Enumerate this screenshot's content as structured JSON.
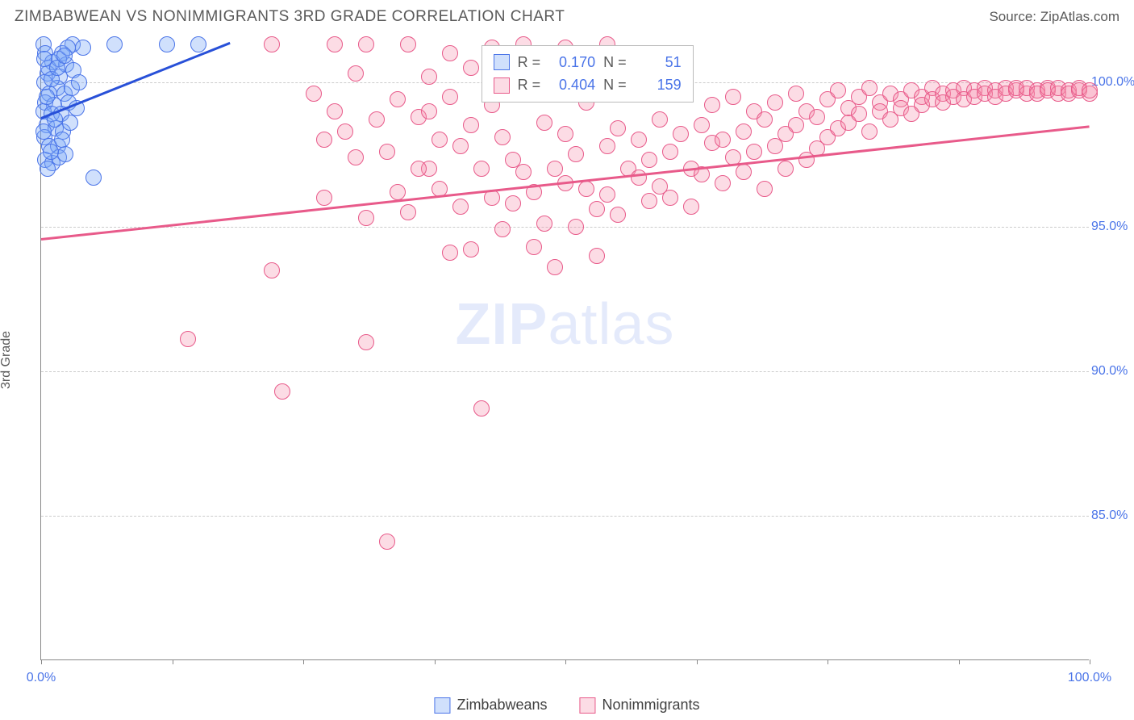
{
  "header": {
    "title": "ZIMBABWEAN VS NONIMMIGRANTS 3RD GRADE CORRELATION CHART",
    "source": "Source: ZipAtlas.com"
  },
  "watermark": {
    "bold": "ZIP",
    "rest": "atlas"
  },
  "chart": {
    "type": "scatter",
    "ylabel": "3rd Grade",
    "xlim": [
      0,
      100
    ],
    "ylim": [
      80,
      101.5
    ],
    "yticks": [
      85.0,
      90.0,
      95.0,
      100.0
    ],
    "ytick_labels": [
      "85.0%",
      "90.0%",
      "95.0%",
      "100.0%"
    ],
    "xtick_marks": [
      0,
      12.5,
      25,
      37.5,
      50,
      62.5,
      75,
      87.5,
      100
    ],
    "xtick_labels": [
      {
        "x": 0,
        "text": "0.0%"
      },
      {
        "x": 100,
        "text": "100.0%"
      }
    ],
    "grid_color": "#cccccc",
    "background_color": "#ffffff",
    "axis_color": "#888888",
    "tick_font_color": "#4a74e8",
    "label_font_color": "#5a5a5a",
    "marker_radius": 10,
    "marker_stroke_width": 1.5,
    "series": [
      {
        "name": "Zimbabweans",
        "color_fill": "rgba(120,165,245,0.35)",
        "color_stroke": "#4a74e8",
        "R": "0.170",
        "N": "51",
        "trend": {
          "x1": 0,
          "y1": 98.8,
          "x2": 18,
          "y2": 101.4,
          "color": "#2850d8",
          "width": 3
        },
        "points": [
          [
            0.2,
            101.3
          ],
          [
            3,
            101.3
          ],
          [
            7,
            101.3
          ],
          [
            12,
            101.3
          ],
          [
            15,
            101.3
          ],
          [
            0.4,
            101.0
          ],
          [
            2.0,
            101.0
          ],
          [
            1.1,
            100.7
          ],
          [
            2.4,
            100.6
          ],
          [
            0.6,
            100.3
          ],
          [
            1.8,
            100.2
          ],
          [
            3.1,
            100.4
          ],
          [
            0.3,
            100.0
          ],
          [
            1.5,
            99.8
          ],
          [
            0.8,
            99.6
          ],
          [
            2.2,
            99.6
          ],
          [
            0.4,
            99.3
          ],
          [
            1.2,
            99.2
          ],
          [
            2.6,
            99.3
          ],
          [
            0.2,
            99.0
          ],
          [
            1.0,
            98.9
          ],
          [
            1.9,
            98.9
          ],
          [
            0.5,
            98.5
          ],
          [
            1.4,
            98.4
          ],
          [
            0.3,
            98.1
          ],
          [
            2.1,
            98.3
          ],
          [
            0.8,
            97.8
          ],
          [
            1.6,
            97.8
          ],
          [
            0.4,
            97.3
          ],
          [
            1.1,
            97.2
          ],
          [
            1.7,
            97.4
          ],
          [
            2.3,
            97.5
          ],
          [
            0.6,
            97.0
          ],
          [
            0.9,
            97.6
          ],
          [
            1.3,
            98.7
          ],
          [
            2.0,
            98.0
          ],
          [
            2.8,
            98.6
          ],
          [
            3.4,
            99.1
          ],
          [
            0.7,
            100.5
          ],
          [
            1.7,
            100.8
          ],
          [
            2.5,
            101.2
          ],
          [
            4.0,
            101.2
          ],
          [
            5.0,
            96.7
          ],
          [
            0.2,
            98.3
          ],
          [
            0.5,
            99.5
          ],
          [
            1.0,
            100.1
          ],
          [
            1.5,
            100.5
          ],
          [
            2.2,
            100.9
          ],
          [
            2.9,
            99.8
          ],
          [
            3.6,
            100.0
          ],
          [
            0.3,
            100.8
          ]
        ]
      },
      {
        "name": "Nonimmigrants",
        "color_fill": "rgba(245,140,170,0.30)",
        "color_stroke": "#e85a8a",
        "R": "0.404",
        "N": "159",
        "trend": {
          "x1": 0,
          "y1": 94.6,
          "x2": 100,
          "y2": 98.5,
          "color": "#e85a8a",
          "width": 3
        },
        "points": [
          [
            22,
            101.3
          ],
          [
            28,
            101.3
          ],
          [
            31,
            101.3
          ],
          [
            35,
            101.3
          ],
          [
            37,
            97.0
          ],
          [
            14,
            91.1
          ],
          [
            22,
            93.5
          ],
          [
            23,
            89.3
          ],
          [
            26,
            99.6
          ],
          [
            27,
            98.0
          ],
          [
            27,
            96.0
          ],
          [
            28,
            99.0
          ],
          [
            29,
            98.3
          ],
          [
            30,
            100.3
          ],
          [
            30,
            97.4
          ],
          [
            31,
            91.0
          ],
          [
            31,
            95.3
          ],
          [
            32,
            98.7
          ],
          [
            33,
            84.1
          ],
          [
            33,
            97.6
          ],
          [
            34,
            99.4
          ],
          [
            34,
            96.2
          ],
          [
            35,
            95.5
          ],
          [
            36,
            98.8
          ],
          [
            36,
            97.0
          ],
          [
            37,
            100.2
          ],
          [
            37,
            99.0
          ],
          [
            38,
            98.0
          ],
          [
            38,
            96.3
          ],
          [
            39,
            94.1
          ],
          [
            39,
            99.5
          ],
          [
            40,
            95.7
          ],
          [
            40,
            97.8
          ],
          [
            41,
            100.5
          ],
          [
            41,
            98.5
          ],
          [
            41,
            94.2
          ],
          [
            42,
            97.0
          ],
          [
            42,
            88.7
          ],
          [
            43,
            99.2
          ],
          [
            43,
            96.0
          ],
          [
            44,
            98.1
          ],
          [
            44,
            94.9
          ],
          [
            45,
            97.3
          ],
          [
            45,
            95.8
          ],
          [
            46,
            96.9
          ],
          [
            46,
            99.8
          ],
          [
            47,
            94.3
          ],
          [
            47,
            96.2
          ],
          [
            48,
            98.6
          ],
          [
            48,
            95.1
          ],
          [
            49,
            97.0
          ],
          [
            49,
            93.6
          ],
          [
            50,
            96.5
          ],
          [
            50,
            98.2
          ],
          [
            51,
            95.0
          ],
          [
            51,
            97.5
          ],
          [
            52,
            96.3
          ],
          [
            52,
            99.3
          ],
          [
            53,
            95.6
          ],
          [
            53,
            94.0
          ],
          [
            54,
            97.8
          ],
          [
            54,
            96.1
          ],
          [
            55,
            98.4
          ],
          [
            55,
            95.4
          ],
          [
            56,
            97.0
          ],
          [
            56,
            99.6
          ],
          [
            57,
            96.7
          ],
          [
            57,
            98.0
          ],
          [
            58,
            95.9
          ],
          [
            58,
            97.3
          ],
          [
            59,
            96.4
          ],
          [
            59,
            98.7
          ],
          [
            60,
            97.6
          ],
          [
            60,
            96.0
          ],
          [
            61,
            98.2
          ],
          [
            61,
            99.7
          ],
          [
            62,
            97.0
          ],
          [
            62,
            95.7
          ],
          [
            63,
            98.5
          ],
          [
            63,
            96.8
          ],
          [
            64,
            97.9
          ],
          [
            64,
            99.2
          ],
          [
            65,
            96.5
          ],
          [
            65,
            98.0
          ],
          [
            66,
            97.4
          ],
          [
            66,
            99.5
          ],
          [
            67,
            98.3
          ],
          [
            67,
            96.9
          ],
          [
            68,
            99.0
          ],
          [
            68,
            97.6
          ],
          [
            69,
            98.7
          ],
          [
            69,
            96.3
          ],
          [
            70,
            99.3
          ],
          [
            70,
            97.8
          ],
          [
            71,
            98.2
          ],
          [
            71,
            97.0
          ],
          [
            72,
            99.6
          ],
          [
            72,
            98.5
          ],
          [
            73,
            97.3
          ],
          [
            73,
            99.0
          ],
          [
            74,
            98.8
          ],
          [
            74,
            97.7
          ],
          [
            75,
            99.4
          ],
          [
            75,
            98.1
          ],
          [
            76,
            99.7
          ],
          [
            76,
            98.4
          ],
          [
            77,
            99.1
          ],
          [
            77,
            98.6
          ],
          [
            78,
            99.5
          ],
          [
            78,
            98.9
          ],
          [
            79,
            99.8
          ],
          [
            79,
            98.3
          ],
          [
            80,
            99.3
          ],
          [
            80,
            99.0
          ],
          [
            81,
            99.6
          ],
          [
            81,
            98.7
          ],
          [
            82,
            99.4
          ],
          [
            82,
            99.1
          ],
          [
            83,
            99.7
          ],
          [
            83,
            98.9
          ],
          [
            84,
            99.5
          ],
          [
            84,
            99.2
          ],
          [
            85,
            99.8
          ],
          [
            85,
            99.4
          ],
          [
            86,
            99.6
          ],
          [
            86,
            99.3
          ],
          [
            87,
            99.7
          ],
          [
            87,
            99.5
          ],
          [
            88,
            99.8
          ],
          [
            88,
            99.4
          ],
          [
            89,
            99.7
          ],
          [
            89,
            99.5
          ],
          [
            90,
            99.8
          ],
          [
            90,
            99.6
          ],
          [
            91,
            99.7
          ],
          [
            91,
            99.5
          ],
          [
            92,
            99.8
          ],
          [
            92,
            99.6
          ],
          [
            93,
            99.7
          ],
          [
            93,
            99.8
          ],
          [
            94,
            99.6
          ],
          [
            94,
            99.8
          ],
          [
            95,
            99.7
          ],
          [
            95,
            99.6
          ],
          [
            96,
            99.8
          ],
          [
            96,
            99.7
          ],
          [
            97,
            99.6
          ],
          [
            97,
            99.8
          ],
          [
            98,
            99.7
          ],
          [
            98,
            99.6
          ],
          [
            99,
            99.7
          ],
          [
            99,
            99.8
          ],
          [
            100,
            99.6
          ],
          [
            100,
            99.7
          ],
          [
            39,
            101.0
          ],
          [
            43,
            101.2
          ],
          [
            46,
            101.3
          ],
          [
            50,
            101.2
          ],
          [
            54,
            101.3
          ]
        ]
      }
    ],
    "stats_box": {
      "left_pct": 42,
      "top_pct": 1
    },
    "legend": {
      "items": [
        "Zimbabweans",
        "Nonimmigrants"
      ]
    }
  }
}
